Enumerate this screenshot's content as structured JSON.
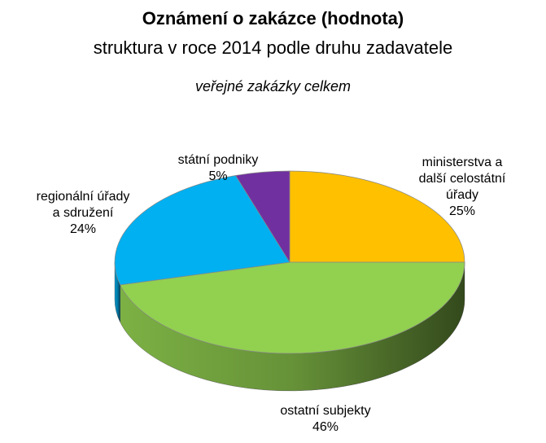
{
  "chart_data": {
    "type": "pie3d",
    "title": "Oznámení o zakázce (hodnota)",
    "subtitle": "struktura v roce 2014 podle druhu zadavatele",
    "annotation": "veřejné zakázky celkem",
    "categories": [
      "ministerstva a\ndalší celostátní\núřady",
      "ostatní subjekty",
      "regionální úřady\na sdružení",
      "státní podniky"
    ],
    "values": [
      25,
      46,
      24,
      5
    ],
    "value_labels": [
      "25%",
      "46%",
      "24%",
      "5%"
    ],
    "colors": [
      "#FFC000",
      "#92D050",
      "#00B0F0",
      "#7030A0"
    ]
  }
}
